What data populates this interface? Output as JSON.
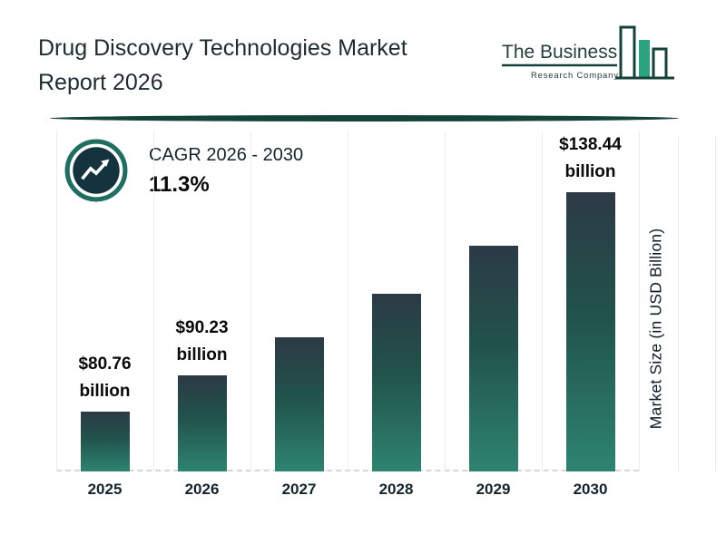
{
  "header": {
    "title_lines": [
      "Drug Discovery Technologies Market",
      "Report 2026"
    ]
  },
  "logo": {
    "name": "The Business",
    "subtitle": "Research Company"
  },
  "cagr": {
    "label": "CAGR 2026 - 2030",
    "value": "11.3%"
  },
  "chart_data": {
    "type": "bar",
    "title": "Drug Discovery Technologies Market Report 2026",
    "categories": [
      "2025",
      "2026",
      "2027",
      "2028",
      "2029",
      "2030"
    ],
    "values": [
      80.76,
      90.23,
      100.4,
      111.8,
      124.4,
      138.44
    ],
    "value_labels": [
      {
        "index": 0,
        "line1": "$80.76",
        "line2": "billion"
      },
      {
        "index": 1,
        "line1": "$90.23",
        "line2": "billion"
      },
      {
        "index": 5,
        "line1": "$138.44",
        "line2": "billion"
      }
    ],
    "xlabel": "",
    "ylabel": "Market Size (in USD Billion)",
    "ylim": [
      65,
      145
    ],
    "grid": "faint-vertical",
    "legend": "none",
    "bar_gradient_top": "#2c3a45",
    "bar_gradient_mid": "#21534c",
    "bar_gradient_bottom": "#2e8470"
  },
  "colors": {
    "accent_teal": "#1e6e61",
    "divider": "#15433c",
    "logo_green": "#2ba47e",
    "icon_inner": "#15333e",
    "text_dark": "#1d2b33"
  }
}
